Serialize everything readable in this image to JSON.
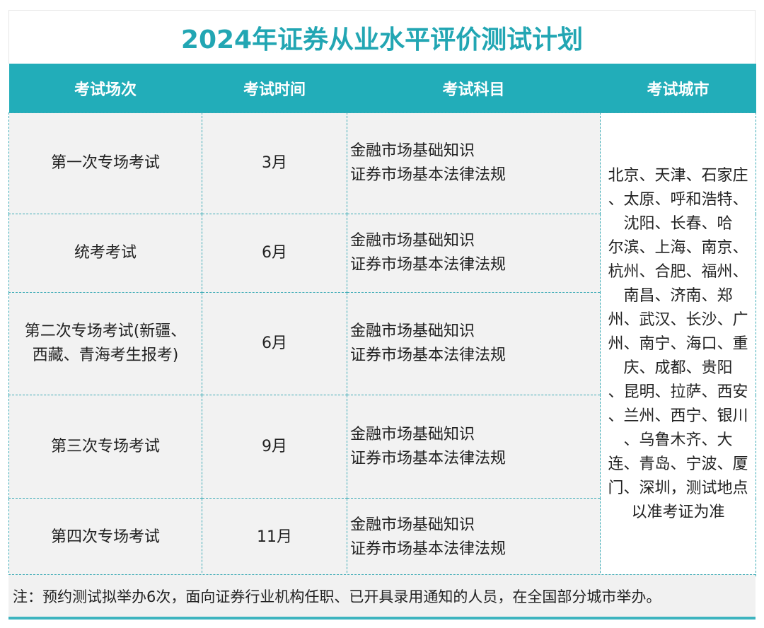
{
  "title": "2024年证券从业水平评价测试计划",
  "headers": [
    "考试场次",
    "考试时间",
    "考试科目",
    "考试城市"
  ],
  "rows": [
    {
      "session": "第一次专场考试",
      "time": "3月",
      "subjects": [
        "金融市场基础知识",
        "证券市场基本法律法规"
      ]
    },
    {
      "session": "统考考试",
      "time": "6月",
      "subjects": [
        "金融市场基础知识",
        "证券市场基本法律法规"
      ]
    },
    {
      "session": "第二次专场考试(新疆、西藏、青海考生报考)",
      "time": "6月",
      "subjects": [
        "金融市场基础知识",
        "证券市场基本法律法规"
      ]
    },
    {
      "session": "第三次专场考试",
      "time": "9月",
      "subjects": [
        "金融市场基础知识",
        "证券市场基本法律法规"
      ]
    },
    {
      "session": "第四次专场考试",
      "time": "11月",
      "subjects": [
        "金融市场基础知识",
        "证券市场基本法律法规"
      ]
    }
  ],
  "cities": [
    "北京、天津、石家庄",
    "、太原、呼和浩特、",
    "沈阳、长春、哈",
    "尔滨、上海、南京、",
    "杭州、合肥、福州、",
    "南昌、济南、郑",
    "州、武汉、长沙、广",
    "州、南宁、海口、重",
    "庆、成都、贵阳",
    "、昆明、拉萨、西安",
    "、兰州、西宁、银川",
    "、乌鲁木齐、大",
    "连、青岛、宁波、厦",
    "门、深圳，测试地点",
    "以准考证为准"
  ],
  "note": "注：预约测试拟举办6次，面向证券行业机构任职、已开具录用通知的人员，在全国部分城市举办。",
  "colors": {
    "accent": "#22adb9",
    "title": "#22a6b3"
  }
}
